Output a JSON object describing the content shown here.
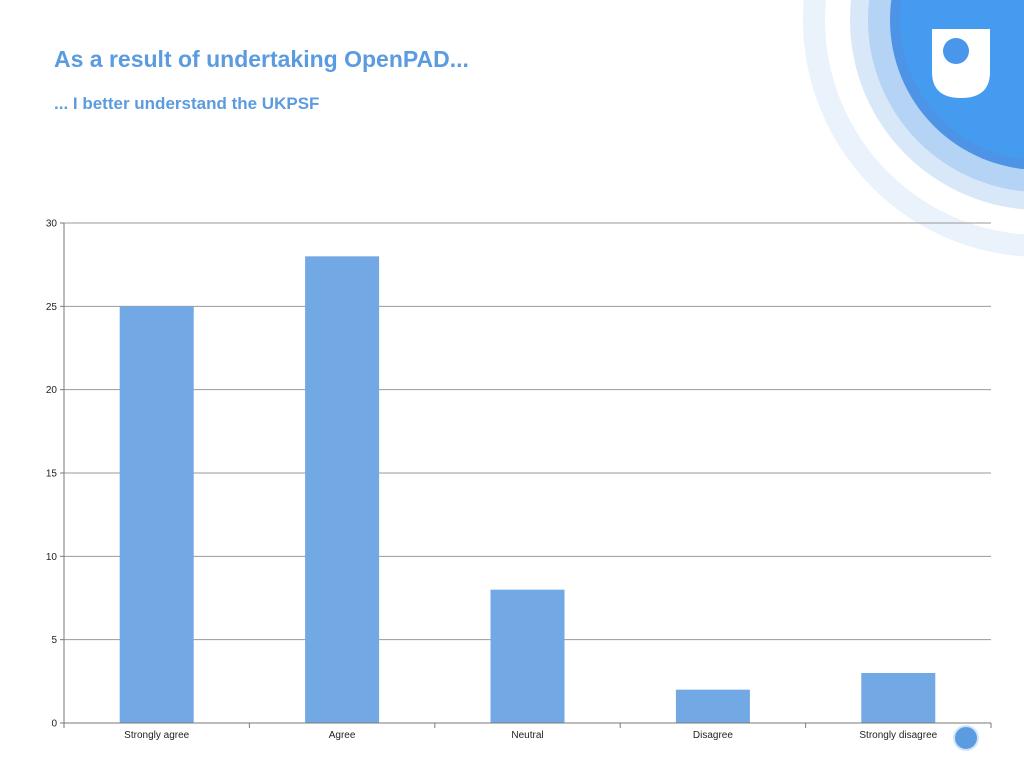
{
  "slide": {
    "title": "As a result of undertaking OpenPAD...",
    "subtitle": "... I better understand the UKPSF"
  },
  "brand": {
    "logo_icon": "open-university-shield-icon",
    "nav_icon": "circle-nav-icon",
    "colors": {
      "primary": "#4a90e2",
      "ring_light": "#d4e5f8",
      "ring_mid": "#a9cdf3",
      "title_text": "#5b9be0"
    }
  },
  "chart_data": {
    "type": "bar",
    "categories": [
      "Strongly agree",
      "Agree",
      "Neutral",
      "Disagree",
      "Strongly disagree"
    ],
    "values": [
      25,
      28,
      8,
      2,
      3
    ],
    "title": "",
    "xlabel": "",
    "ylabel": "",
    "ylim": [
      0,
      30
    ],
    "yticks": [
      0,
      5,
      10,
      15,
      20,
      25,
      30
    ],
    "grid": true,
    "legend": "none",
    "bar_color": "#72a9e4"
  }
}
